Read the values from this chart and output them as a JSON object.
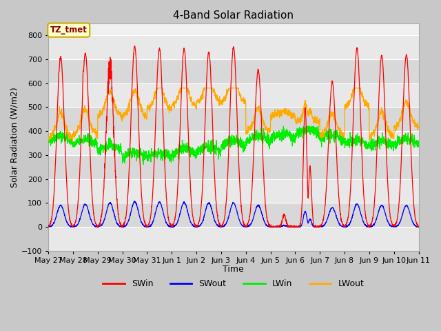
{
  "title": "4-Band Solar Radiation",
  "xlabel": "Time",
  "ylabel": "Solar Radiation (W/m2)",
  "annotation": "TZ_tmet",
  "ylim": [
    -100,
    850
  ],
  "yticks": [
    -100,
    0,
    100,
    200,
    300,
    400,
    500,
    600,
    700,
    800
  ],
  "x_labels": [
    "May 27",
    "May 28",
    "May 29",
    "May 30",
    "May 31",
    "Jun 1",
    "Jun 2",
    "Jun 3",
    "Jun 4",
    "Jun 5",
    "Jun 6",
    "Jun 7",
    "Jun 8",
    "Jun 9",
    "Jun 10",
    "Jun 11"
  ],
  "colors": {
    "SWin": "#ff0000",
    "SWout": "#0000ff",
    "LWin": "#00ee00",
    "LWout": "#ffaa00"
  },
  "figsize": [
    6.4,
    4.8
  ],
  "dpi": 100,
  "num_days": 15,
  "SWin_peaks": [
    710,
    725,
    730,
    755,
    745,
    745,
    730,
    750,
    655,
    30,
    500,
    605,
    745,
    715,
    720
  ],
  "SWout_peaks": [
    90,
    95,
    100,
    105,
    103,
    102,
    100,
    100,
    90,
    10,
    65,
    80,
    95,
    90,
    90
  ],
  "lwin_base_by_day": [
    355,
    340,
    315,
    285,
    285,
    300,
    310,
    335,
    355,
    365,
    385,
    360,
    340,
    335,
    345
  ],
  "lwout_base_by_day": [
    370,
    385,
    460,
    460,
    490,
    505,
    520,
    520,
    395,
    460,
    435,
    380,
    500,
    375,
    415
  ],
  "band_colors": [
    "#e8e8e8",
    "#d8d8d8"
  ],
  "plot_bg": "#f5f5f5"
}
